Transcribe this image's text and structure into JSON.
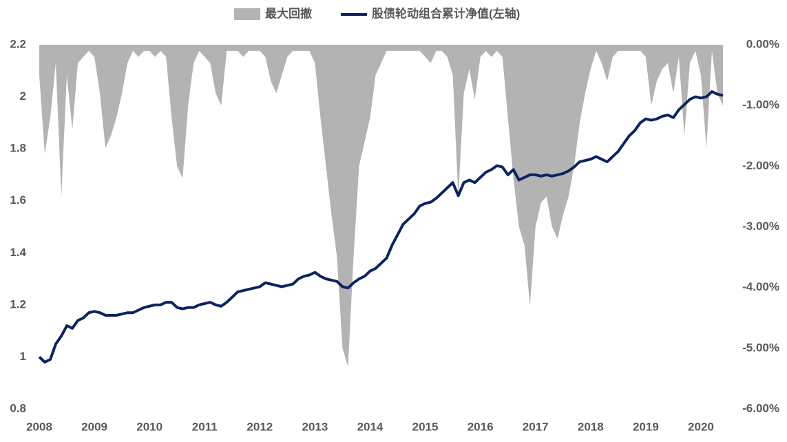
{
  "chart_data": {
    "type": "line",
    "x": [
      2008.0,
      2008.1,
      2008.2,
      2008.3,
      2008.4,
      2008.5,
      2008.6,
      2008.7,
      2008.8,
      2008.9,
      2009.0,
      2009.1,
      2009.2,
      2009.3,
      2009.4,
      2009.5,
      2009.6,
      2009.7,
      2009.8,
      2009.9,
      2010.0,
      2010.1,
      2010.2,
      2010.3,
      2010.4,
      2010.5,
      2010.6,
      2010.7,
      2010.8,
      2010.9,
      2011.0,
      2011.1,
      2011.2,
      2011.3,
      2011.4,
      2011.5,
      2011.6,
      2011.7,
      2011.8,
      2011.9,
      2012.0,
      2012.1,
      2012.2,
      2012.3,
      2012.4,
      2012.5,
      2012.6,
      2012.7,
      2012.8,
      2012.9,
      2013.0,
      2013.1,
      2013.2,
      2013.3,
      2013.4,
      2013.5,
      2013.6,
      2013.7,
      2013.8,
      2013.9,
      2014.0,
      2014.1,
      2014.2,
      2014.3,
      2014.4,
      2014.5,
      2014.6,
      2014.7,
      2014.8,
      2014.9,
      2015.0,
      2015.1,
      2015.2,
      2015.3,
      2015.4,
      2015.5,
      2015.6,
      2015.7,
      2015.8,
      2015.9,
      2016.0,
      2016.1,
      2016.2,
      2016.3,
      2016.4,
      2016.5,
      2016.6,
      2016.7,
      2016.8,
      2016.9,
      2017.0,
      2017.1,
      2017.2,
      2017.3,
      2017.4,
      2017.5,
      2017.6,
      2017.7,
      2017.8,
      2017.9,
      2018.0,
      2018.1,
      2018.2,
      2018.3,
      2018.4,
      2018.5,
      2018.6,
      2018.7,
      2018.8,
      2018.9,
      2019.0,
      2019.1,
      2019.2,
      2019.3,
      2019.4,
      2019.5,
      2019.6,
      2019.7,
      2019.8,
      2019.9,
      2020.0,
      2020.1,
      2020.2,
      2020.3,
      2020.4
    ],
    "series": [
      {
        "name": "最大回撤",
        "type": "area",
        "axis": "y2",
        "color": "#b3b3b3",
        "values": [
          -0.5,
          -1.8,
          -1.2,
          -0.3,
          -2.5,
          -0.5,
          -1.4,
          -0.3,
          -0.2,
          -0.1,
          -0.2,
          -0.8,
          -1.7,
          -1.5,
          -1.2,
          -0.8,
          -0.3,
          -0.1,
          -0.2,
          -0.1,
          -0.1,
          -0.2,
          -0.1,
          -0.2,
          -1.2,
          -2.0,
          -2.2,
          -1.0,
          -0.3,
          -0.1,
          -0.2,
          -0.3,
          -0.8,
          -1.0,
          -0.1,
          -0.1,
          -0.1,
          -0.2,
          -0.1,
          -0.1,
          -0.1,
          -0.2,
          -0.6,
          -0.8,
          -0.5,
          -0.2,
          -0.1,
          -0.1,
          -0.1,
          -0.1,
          -0.3,
          -1.2,
          -2.0,
          -2.8,
          -3.5,
          -5.0,
          -5.3,
          -3.5,
          -2.0,
          -1.6,
          -1.2,
          -0.5,
          -0.3,
          -0.1,
          -0.1,
          -0.1,
          -0.1,
          -0.1,
          -0.1,
          -0.1,
          -0.2,
          -0.3,
          -0.1,
          -0.1,
          -0.2,
          -0.5,
          -2.5,
          -0.8,
          -0.4,
          -0.9,
          -0.2,
          -0.1,
          -0.2,
          -0.1,
          -0.2,
          -1.2,
          -2.2,
          -3.0,
          -3.3,
          -4.3,
          -3.0,
          -2.6,
          -2.5,
          -3.0,
          -3.2,
          -2.8,
          -2.5,
          -2.0,
          -1.3,
          -0.8,
          -0.4,
          -0.1,
          -0.3,
          -0.6,
          -0.2,
          -0.1,
          -0.1,
          -0.1,
          -0.1,
          -0.1,
          -0.2,
          -1.0,
          -0.6,
          -0.4,
          -0.3,
          -0.8,
          -0.2,
          -1.5,
          -0.3,
          -0.1,
          -0.5,
          -1.7,
          -0.1,
          -0.8,
          -1.0
        ]
      },
      {
        "name": "股债轮动组合累计净值(左轴)",
        "type": "line",
        "color": "#0d2360",
        "values": [
          1.0,
          0.98,
          0.99,
          1.05,
          1.08,
          1.12,
          1.11,
          1.14,
          1.15,
          1.17,
          1.175,
          1.17,
          1.16,
          1.16,
          1.16,
          1.165,
          1.17,
          1.17,
          1.18,
          1.19,
          1.195,
          1.2,
          1.2,
          1.21,
          1.21,
          1.19,
          1.185,
          1.19,
          1.19,
          1.2,
          1.205,
          1.21,
          1.2,
          1.195,
          1.21,
          1.23,
          1.25,
          1.255,
          1.26,
          1.265,
          1.27,
          1.285,
          1.28,
          1.275,
          1.27,
          1.275,
          1.28,
          1.3,
          1.31,
          1.315,
          1.325,
          1.31,
          1.3,
          1.295,
          1.29,
          1.27,
          1.265,
          1.285,
          1.3,
          1.31,
          1.33,
          1.34,
          1.36,
          1.38,
          1.43,
          1.47,
          1.51,
          1.53,
          1.55,
          1.58,
          1.59,
          1.595,
          1.61,
          1.63,
          1.65,
          1.67,
          1.62,
          1.67,
          1.68,
          1.67,
          1.69,
          1.71,
          1.72,
          1.735,
          1.73,
          1.7,
          1.72,
          1.68,
          1.69,
          1.7,
          1.7,
          1.695,
          1.7,
          1.695,
          1.7,
          1.705,
          1.715,
          1.73,
          1.75,
          1.755,
          1.76,
          1.77,
          1.76,
          1.75,
          1.77,
          1.79,
          1.82,
          1.85,
          1.87,
          1.9,
          1.915,
          1.91,
          1.915,
          1.925,
          1.93,
          1.92,
          1.95,
          1.97,
          1.99,
          2.0,
          1.995,
          2.0,
          2.02,
          2.01,
          2.005
        ]
      }
    ],
    "xlim": [
      2008,
      2020.45
    ],
    "xticks": [
      2008,
      2009,
      2010,
      2011,
      2012,
      2013,
      2014,
      2015,
      2016,
      2017,
      2018,
      2019,
      2020
    ],
    "ylim": [
      0.8,
      2.2
    ],
    "yticks": [
      0.8,
      1,
      1.2,
      1.4,
      1.6,
      1.8,
      2,
      2.2
    ],
    "y2lim": [
      -6,
      0
    ],
    "y2ticks": [
      {
        "value": 0,
        "label": "0.00%"
      },
      {
        "value": -1,
        "label": "-1.00%"
      },
      {
        "value": -2,
        "label": "-2.00%"
      },
      {
        "value": -3,
        "label": "-3.00%"
      },
      {
        "value": -4,
        "label": "-4.00%"
      },
      {
        "value": -5,
        "label": "-5.00%"
      },
      {
        "value": -6,
        "label": "-6.00%"
      }
    ],
    "grid": false,
    "legend": "top"
  }
}
